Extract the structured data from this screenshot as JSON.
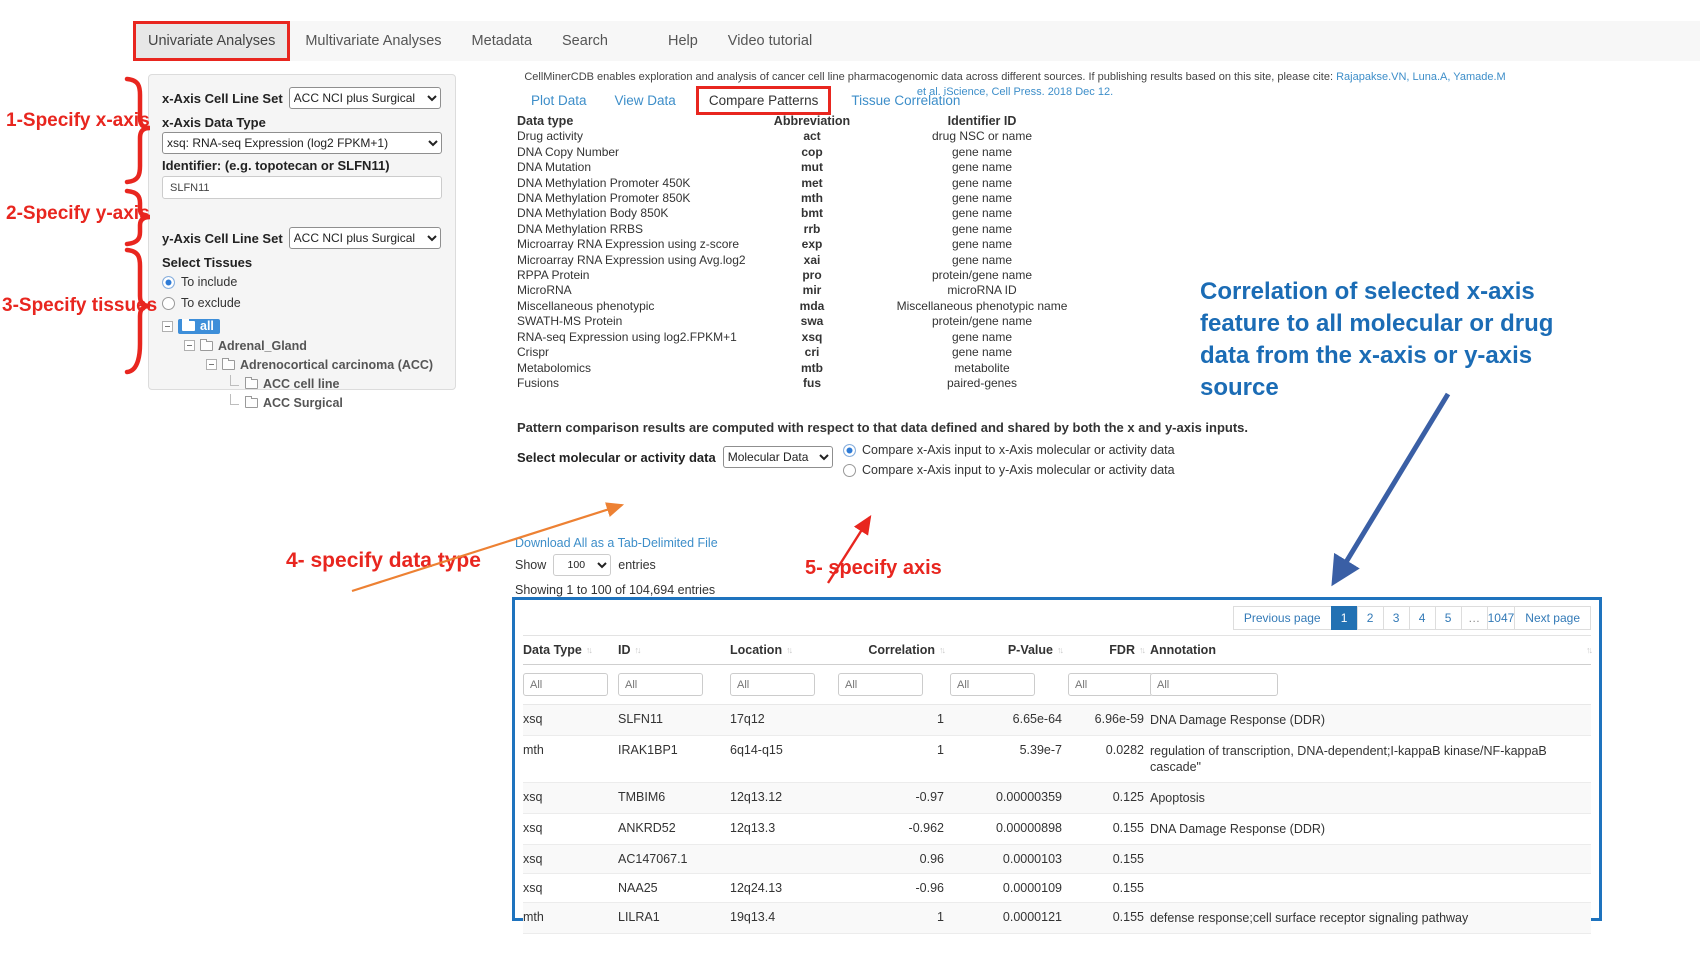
{
  "colors": {
    "red": "#e8261f",
    "link_blue": "#3d8ec9",
    "table_border_blue": "#1e73be",
    "pagination_active_blue": "#2271b3",
    "note_blue": "#1b6cb5",
    "orange_arrow": "#ed8133",
    "blue_arrow": "#3a5fa5",
    "tree_selected_blue": "#3d8ed9"
  },
  "nav": {
    "tabs": [
      {
        "label": "Univariate Analyses",
        "active": true
      },
      {
        "label": "Multivariate Analyses",
        "active": false
      },
      {
        "label": "Metadata",
        "active": false
      },
      {
        "label": "Search",
        "active": false
      },
      {
        "label": "Help",
        "active": false,
        "gap": 30
      },
      {
        "label": "Video tutorial",
        "active": false
      }
    ]
  },
  "citation": {
    "text_before": "CellMinerCDB enables exploration and analysis of cancer cell line pharmacogenomic data across different sources. If publishing results based on this site, please cite: ",
    "link_authors": "Rajapakse.VN, Luna.A, Yamade.M",
    "line2": "et al. iScience, Cell Press. 2018 Dec 12."
  },
  "subtabs": {
    "tabs": [
      {
        "label": "Plot Data",
        "active": false
      },
      {
        "label": "View Data",
        "active": false
      },
      {
        "label": "Compare Patterns",
        "active": true
      },
      {
        "label": "Tissue Correlation",
        "active": false
      }
    ]
  },
  "sidebar": {
    "x_cls_label": "x-Axis Cell Line Set",
    "x_cls_value": "ACC NCI plus Surgical",
    "x_dtype_label": "x-Axis Data Type",
    "x_dtype_value": "xsq: RNA-seq Expression (log2 FPKM+1)",
    "identifier_label": "Identifier: (e.g. topotecan or SLFN11)",
    "identifier_value": "SLFN11",
    "y_cls_label": "y-Axis Cell Line Set",
    "y_cls_value": "ACC NCI plus Surgical",
    "select_tissues_label": "Select Tissues",
    "radios": [
      {
        "label": "To include",
        "checked": true
      },
      {
        "label": "To exclude",
        "checked": false
      }
    ],
    "tree": [
      {
        "label": "all",
        "level": 0,
        "leaf": false,
        "selected": true
      },
      {
        "label": "Adrenal_Gland",
        "level": 1,
        "leaf": false,
        "selected": false
      },
      {
        "label": "Adrenocortical carcinoma (ACC)",
        "level": 2,
        "leaf": false,
        "selected": false
      },
      {
        "label": "ACC cell line",
        "level": 3,
        "leaf": true,
        "selected": false
      },
      {
        "label": "ACC Surgical",
        "level": 3,
        "leaf": true,
        "selected": false
      }
    ]
  },
  "datatype_table": {
    "headers": [
      "Data type",
      "Abbreviation",
      "Identifier ID"
    ],
    "rows": [
      [
        "Drug activity",
        "act",
        "drug NSC or name"
      ],
      [
        "DNA Copy Number",
        "cop",
        "gene name"
      ],
      [
        "DNA Mutation",
        "mut",
        "gene name"
      ],
      [
        "DNA Methylation Promoter 450K",
        "met",
        "gene name"
      ],
      [
        "DNA Methylation Promoter 850K",
        "mth",
        "gene name"
      ],
      [
        "DNA Methylation Body 850K",
        "bmt",
        "gene name"
      ],
      [
        "DNA Methylation RRBS",
        "rrb",
        "gene name"
      ],
      [
        "Microarray RNA Expression using z-score",
        "exp",
        "gene name"
      ],
      [
        "Microarray RNA Expression using Avg.log2",
        "xai",
        "gene name"
      ],
      [
        "RPPA Protein",
        "pro",
        "protein/gene name"
      ],
      [
        "MicroRNA",
        "mir",
        "microRNA ID"
      ],
      [
        "Miscellaneous phenotypic",
        "mda",
        "Miscellaneous phenotypic name"
      ],
      [
        "SWATH-MS Protein",
        "swa",
        "protein/gene name"
      ],
      [
        "RNA-seq Expression using log2.FPKM+1",
        "xsq",
        "gene name"
      ],
      [
        "Crispr",
        "cri",
        "gene name"
      ],
      [
        "Metabolomics",
        "mtb",
        "metabolite"
      ],
      [
        "Fusions",
        "fus",
        "paired-genes"
      ]
    ]
  },
  "pattern_note": "Pattern comparison results are computed with respect to that data defined and shared by both the x and y-axis inputs.",
  "molecular_select": {
    "label": "Select molecular or activity data",
    "value": "Molecular Data"
  },
  "compare_radios": [
    {
      "label": "Compare x-Axis input to x-Axis molecular or activity data",
      "checked": true
    },
    {
      "label": "Compare x-Axis input to y-Axis molecular or activity data",
      "checked": false
    }
  ],
  "download_link": "Download All as a Tab-Delimited File",
  "show_entries": {
    "prefix": "Show",
    "value": "100",
    "suffix": "entries"
  },
  "showing_text": "Showing 1 to 100 of 104,694 entries",
  "pagination": {
    "prev": "Previous page",
    "pages": [
      "1",
      "2",
      "3",
      "4",
      "5",
      "…",
      "1047"
    ],
    "active": "1",
    "next": "Next page"
  },
  "results_table": {
    "columns": [
      {
        "label": "Data Type",
        "align": "l"
      },
      {
        "label": "ID",
        "align": "l"
      },
      {
        "label": "Location",
        "align": "l"
      },
      {
        "label": "Correlation",
        "align": "r"
      },
      {
        "label": "P-Value",
        "align": "r"
      },
      {
        "label": "FDR",
        "align": "r"
      },
      {
        "label": "Annotation",
        "align": "l"
      }
    ],
    "filter_placeholder": "All",
    "rows": [
      {
        "data_type": "xsq",
        "id": "SLFN11",
        "location": "17q12",
        "correlation": "1",
        "p_value": "6.65e-64",
        "fdr": "6.96e-59",
        "annotation": "DNA Damage Response (DDR)"
      },
      {
        "data_type": "mth",
        "id": "IRAK1BP1",
        "location": "6q14-q15",
        "correlation": "1",
        "p_value": "5.39e-7",
        "fdr": "0.0282",
        "annotation": "regulation of transcription, DNA-dependent;I-kappaB kinase/NF-kappaB cascade\""
      },
      {
        "data_type": "xsq",
        "id": "TMBIM6",
        "location": "12q13.12",
        "correlation": "-0.97",
        "p_value": "0.00000359",
        "fdr": "0.125",
        "annotation": "Apoptosis"
      },
      {
        "data_type": "xsq",
        "id": "ANKRD52",
        "location": "12q13.3",
        "correlation": "-0.962",
        "p_value": "0.00000898",
        "fdr": "0.155",
        "annotation": "DNA Damage Response (DDR)"
      },
      {
        "data_type": "xsq",
        "id": "AC147067.1",
        "location": "",
        "correlation": "0.96",
        "p_value": "0.0000103",
        "fdr": "0.155",
        "annotation": ""
      },
      {
        "data_type": "xsq",
        "id": "NAA25",
        "location": "12q24.13",
        "correlation": "-0.96",
        "p_value": "0.0000109",
        "fdr": "0.155",
        "annotation": ""
      },
      {
        "data_type": "mth",
        "id": "LILRA1",
        "location": "19q13.4",
        "correlation": "1",
        "p_value": "0.0000121",
        "fdr": "0.155",
        "annotation": "defense response;cell surface receptor signaling pathway"
      }
    ]
  },
  "annotations": {
    "step1": "1-Specify x-axis",
    "step2": "2-Specify y-axis",
    "step3": "3-Specify tissues",
    "step4": "4- specify data type",
    "step5": "5- specify axis",
    "blue_note_lines": [
      "Correlation of selected x-axis",
      "feature to all molecular or drug",
      "data from the x-axis or y-axis",
      "source"
    ]
  }
}
